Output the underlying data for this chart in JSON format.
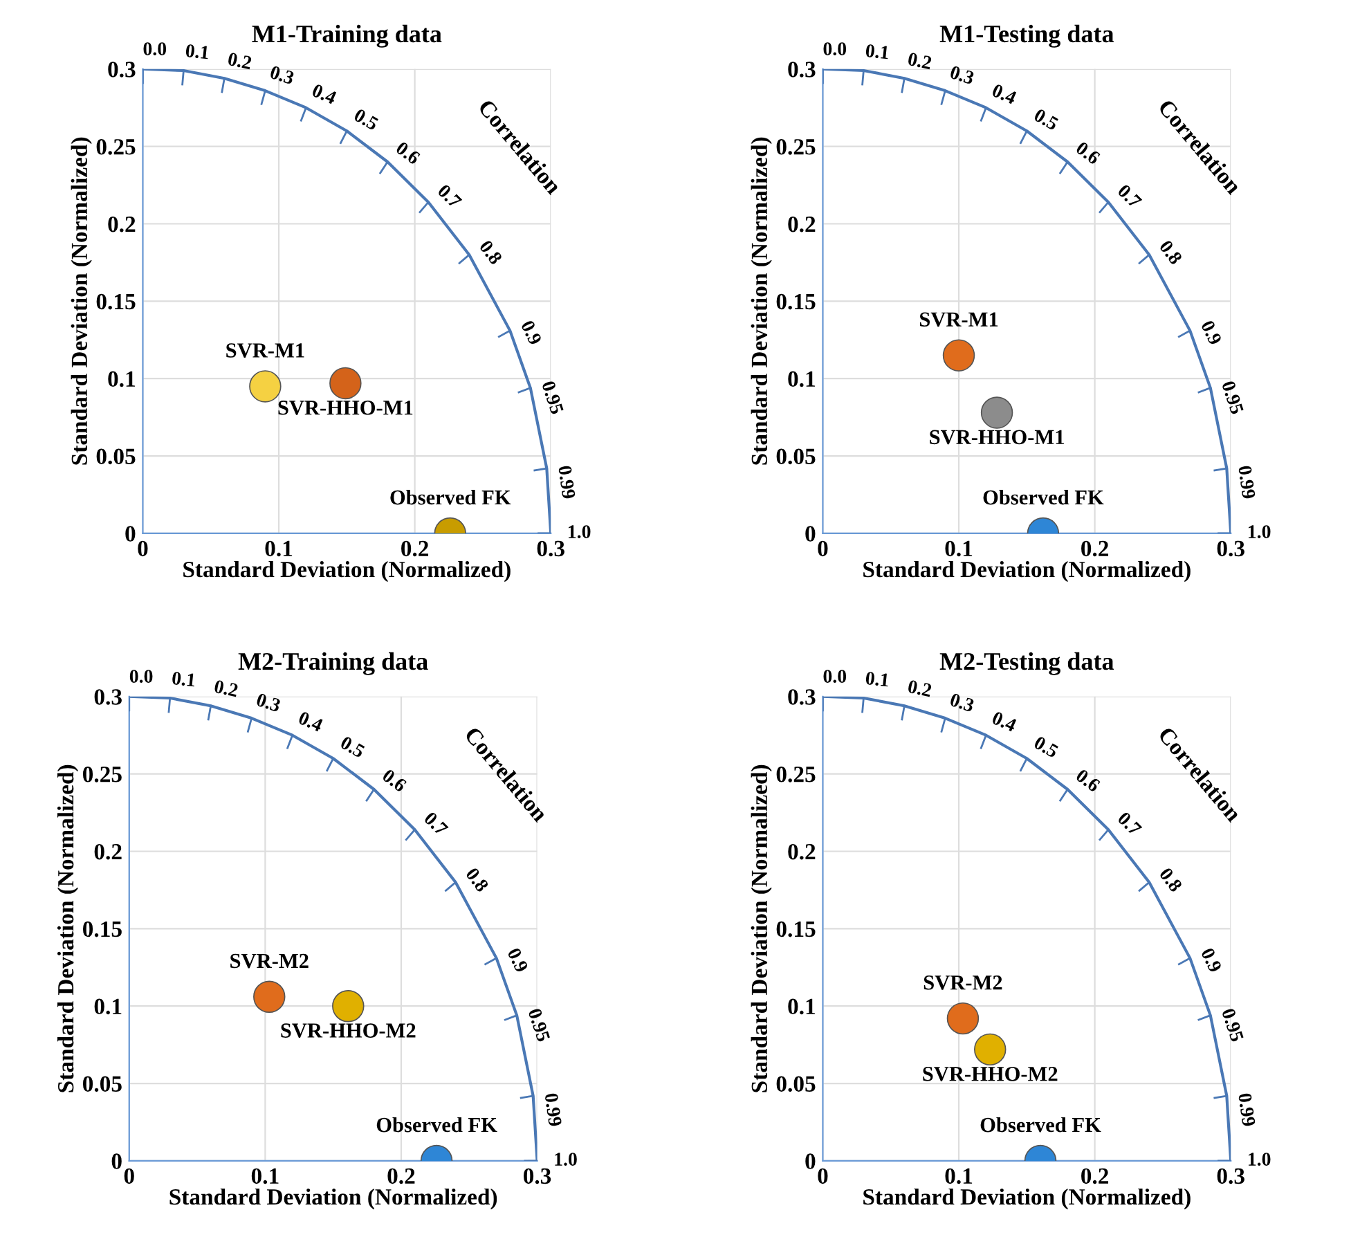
{
  "chart_data": [
    {
      "type": "scatter",
      "title": "M1-Training data",
      "xlabel": "Standard Deviation (Normalized)",
      "ylabel": "Standard Deviation (Normalized)",
      "xlim": [
        0,
        0.3
      ],
      "ylim": [
        0,
        0.3
      ],
      "xticks": [
        0,
        0.1,
        0.2,
        0.3
      ],
      "yticks": [
        0,
        0.05,
        0.1,
        0.15,
        0.2,
        0.25,
        0.3
      ],
      "grid": true,
      "series": [
        {
          "name": "SVR-M1",
          "color": "#f5d142",
          "marker": "circle",
          "x": [
            0.09
          ],
          "values": [
            0.095
          ]
        },
        {
          "name": "SVR-HHO-M1",
          "color": "#d4631a",
          "marker": "circle",
          "x": [
            0.149
          ],
          "values": [
            0.097
          ]
        },
        {
          "name": "Observed FK",
          "color": "#c89c00",
          "marker": "circle",
          "x": [
            0.226
          ],
          "values": [
            0
          ]
        },
        {
          "type": "line",
          "color": "#4a78b5",
          "x": [
            0,
            0.03,
            0.06,
            0.09,
            0.12,
            0.15,
            0.18,
            0.21,
            0.24,
            0.27,
            0.285,
            0.297,
            0.3
          ],
          "values": [
            0.3,
            0.299,
            0.294,
            0.286,
            0.275,
            0.26,
            0.24,
            0.214,
            0.18,
            0.131,
            0.094,
            0.042,
            0
          ]
        }
      ],
      "annotations": [
        "Correlation",
        {
          "text": "0.0",
          "x": 0,
          "y": 0.3
        },
        {
          "text": "0.1",
          "x": 0.03,
          "y": 0.299
        },
        {
          "text": "0.2",
          "x": 0.06,
          "y": 0.294
        },
        {
          "text": "0.3",
          "x": 0.09,
          "y": 0.286
        },
        {
          "text": "0.4",
          "x": 0.12,
          "y": 0.275
        },
        {
          "text": "0.5",
          "x": 0.15,
          "y": 0.26
        },
        {
          "text": "0.6",
          "x": 0.18,
          "y": 0.24
        },
        {
          "text": "0.7",
          "x": 0.21,
          "y": 0.214
        },
        {
          "text": "0.8",
          "x": 0.24,
          "y": 0.18
        },
        {
          "text": "0.9",
          "x": 0.27,
          "y": 0.131
        },
        {
          "text": "0.95",
          "x": 0.285,
          "y": 0.094
        },
        {
          "text": "0.99",
          "x": 0.297,
          "y": 0.042
        },
        {
          "text": "1.0",
          "x": 0.3,
          "y": 0
        }
      ]
    },
    {
      "type": "scatter",
      "title": "M1-Testing data",
      "xlabel": "Standard Deviation (Normalized)",
      "ylabel": "Standard Deviation (Normalized)",
      "xlim": [
        0,
        0.3
      ],
      "ylim": [
        0,
        0.3
      ],
      "xticks": [
        0,
        0.1,
        0.2,
        0.3
      ],
      "yticks": [
        0,
        0.05,
        0.1,
        0.15,
        0.2,
        0.25,
        0.3
      ],
      "grid": true,
      "series": [
        {
          "name": "SVR-M1",
          "color": "#e06c1c",
          "marker": "circle",
          "x": [
            0.1
          ],
          "values": [
            0.115
          ]
        },
        {
          "name": "SVR-HHO-M1",
          "color": "#8c8c8c",
          "marker": "circle",
          "x": [
            0.128
          ],
          "values": [
            0.078
          ]
        },
        {
          "name": "Observed FK",
          "color": "#2e86d6",
          "marker": "circle",
          "x": [
            0.162
          ],
          "values": [
            0
          ]
        },
        {
          "type": "line",
          "color": "#4a78b5",
          "x": [
            0,
            0.03,
            0.06,
            0.09,
            0.12,
            0.15,
            0.18,
            0.21,
            0.24,
            0.27,
            0.285,
            0.297,
            0.3
          ],
          "values": [
            0.3,
            0.299,
            0.294,
            0.286,
            0.275,
            0.26,
            0.24,
            0.214,
            0.18,
            0.131,
            0.094,
            0.042,
            0
          ]
        }
      ],
      "annotations": [
        "Correlation",
        {
          "text": "0.0",
          "x": 0,
          "y": 0.3
        },
        {
          "text": "0.1",
          "x": 0.03,
          "y": 0.299
        },
        {
          "text": "0.2",
          "x": 0.06,
          "y": 0.294
        },
        {
          "text": "0.3",
          "x": 0.09,
          "y": 0.286
        },
        {
          "text": "0.4",
          "x": 0.12,
          "y": 0.275
        },
        {
          "text": "0.5",
          "x": 0.15,
          "y": 0.26
        },
        {
          "text": "0.6",
          "x": 0.18,
          "y": 0.24
        },
        {
          "text": "0.7",
          "x": 0.21,
          "y": 0.214
        },
        {
          "text": "0.8",
          "x": 0.24,
          "y": 0.18
        },
        {
          "text": "0.9",
          "x": 0.27,
          "y": 0.131
        },
        {
          "text": "0.95",
          "x": 0.285,
          "y": 0.094
        },
        {
          "text": "0.99",
          "x": 0.297,
          "y": 0.042
        },
        {
          "text": "1.0",
          "x": 0.3,
          "y": 0
        }
      ]
    },
    {
      "type": "scatter",
      "title": "M2-Training data",
      "xlabel": "Standard Deviation (Normalized)",
      "ylabel": "Standard Deviation (Normalized)",
      "xlim": [
        0,
        0.3
      ],
      "ylim": [
        0,
        0.3
      ],
      "xticks": [
        0,
        0.1,
        0.2,
        0.3
      ],
      "yticks": [
        0,
        0.05,
        0.1,
        0.15,
        0.2,
        0.25,
        0.3
      ],
      "grid": true,
      "series": [
        {
          "name": "SVR-M2",
          "color": "#e06c1c",
          "marker": "circle",
          "x": [
            0.103
          ],
          "values": [
            0.106
          ]
        },
        {
          "name": "SVR-HHO-M2",
          "color": "#e0b000",
          "marker": "circle",
          "x": [
            0.161
          ],
          "values": [
            0.1
          ]
        },
        {
          "name": "Observed FK",
          "color": "#2e86d6",
          "marker": "circle",
          "x": [
            0.226
          ],
          "values": [
            0
          ]
        },
        {
          "type": "line",
          "color": "#4a78b5",
          "x": [
            0,
            0.03,
            0.06,
            0.09,
            0.12,
            0.15,
            0.18,
            0.21,
            0.24,
            0.27,
            0.285,
            0.297,
            0.3
          ],
          "values": [
            0.3,
            0.299,
            0.294,
            0.286,
            0.275,
            0.26,
            0.24,
            0.214,
            0.18,
            0.131,
            0.094,
            0.042,
            0
          ]
        }
      ],
      "annotations": [
        "Correlation",
        {
          "text": "0.0",
          "x": 0,
          "y": 0.3
        },
        {
          "text": "0.1",
          "x": 0.03,
          "y": 0.299
        },
        {
          "text": "0.2",
          "x": 0.06,
          "y": 0.294
        },
        {
          "text": "0.3",
          "x": 0.09,
          "y": 0.286
        },
        {
          "text": "0.4",
          "x": 0.12,
          "y": 0.275
        },
        {
          "text": "0.5",
          "x": 0.15,
          "y": 0.26
        },
        {
          "text": "0.6",
          "x": 0.18,
          "y": 0.24
        },
        {
          "text": "0.7",
          "x": 0.21,
          "y": 0.214
        },
        {
          "text": "0.8",
          "x": 0.24,
          "y": 0.18
        },
        {
          "text": "0.9",
          "x": 0.27,
          "y": 0.131
        },
        {
          "text": "0.95",
          "x": 0.285,
          "y": 0.094
        },
        {
          "text": "0.99",
          "x": 0.297,
          "y": 0.042
        },
        {
          "text": "1.0",
          "x": 0.3,
          "y": 0
        }
      ]
    },
    {
      "type": "scatter",
      "title": "M2-Testing data",
      "xlabel": "Standard Deviation (Normalized)",
      "ylabel": "Standard Deviation (Normalized)",
      "xlim": [
        0,
        0.3
      ],
      "ylim": [
        0,
        0.3
      ],
      "xticks": [
        0,
        0.1,
        0.2,
        0.3
      ],
      "yticks": [
        0,
        0.05,
        0.1,
        0.15,
        0.2,
        0.25,
        0.3
      ],
      "grid": true,
      "series": [
        {
          "name": "SVR-M2",
          "color": "#e06c1c",
          "marker": "circle",
          "x": [
            0.103
          ],
          "values": [
            0.092
          ]
        },
        {
          "name": "SVR-HHO-M2",
          "color": "#e0b000",
          "marker": "circle",
          "x": [
            0.123
          ],
          "values": [
            0.072
          ]
        },
        {
          "name": "Observed FK",
          "color": "#2e86d6",
          "marker": "circle",
          "x": [
            0.16
          ],
          "values": [
            0
          ]
        },
        {
          "type": "line",
          "color": "#4a78b5",
          "x": [
            0,
            0.03,
            0.06,
            0.09,
            0.12,
            0.15,
            0.18,
            0.21,
            0.24,
            0.27,
            0.285,
            0.297,
            0.3
          ],
          "values": [
            0.3,
            0.299,
            0.294,
            0.286,
            0.275,
            0.26,
            0.24,
            0.214,
            0.18,
            0.131,
            0.094,
            0.042,
            0
          ]
        }
      ],
      "annotations": [
        "Correlation",
        {
          "text": "0.0",
          "x": 0,
          "y": 0.3
        },
        {
          "text": "0.1",
          "x": 0.03,
          "y": 0.299
        },
        {
          "text": "0.2",
          "x": 0.06,
          "y": 0.294
        },
        {
          "text": "0.3",
          "x": 0.09,
          "y": 0.286
        },
        {
          "text": "0.4",
          "x": 0.12,
          "y": 0.275
        },
        {
          "text": "0.5",
          "x": 0.15,
          "y": 0.26
        },
        {
          "text": "0.6",
          "x": 0.18,
          "y": 0.24
        },
        {
          "text": "0.7",
          "x": 0.21,
          "y": 0.214
        },
        {
          "text": "0.8",
          "x": 0.24,
          "y": 0.18
        },
        {
          "text": "0.9",
          "x": 0.27,
          "y": 0.131
        },
        {
          "text": "0.95",
          "x": 0.285,
          "y": 0.094
        },
        {
          "text": "0.99",
          "x": 0.297,
          "y": 0.042
        },
        {
          "text": "1.0",
          "x": 0.3,
          "y": 0
        }
      ]
    }
  ]
}
